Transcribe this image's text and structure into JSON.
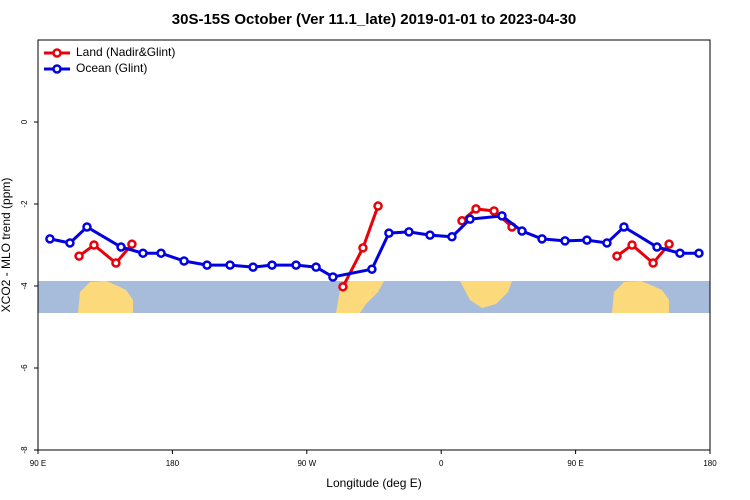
{
  "chart_data": {
    "type": "line",
    "title": "30S-15S October (Ver 11.1_late)   2019-01-01 to 2023-04-30",
    "xlabel": "Longitude (deg E)",
    "ylabel": "XCO2 - MLO trend (ppm)",
    "xlim": [
      90,
      540
    ],
    "xticks": [
      {
        "value": 90,
        "label": "90 E"
      },
      180,
      {
        "value": 270,
        "label": "90 W"
      },
      {
        "value": 360,
        "label": "0"
      },
      {
        "value": 450,
        "label": "90 E"
      },
      {
        "value": 540,
        "label": "180"
      }
    ],
    "ylim": [
      -8,
      2
    ],
    "yticks": [
      0,
      -2,
      -4,
      -6,
      -8
    ],
    "legend": "top-left",
    "series": [
      {
        "name": "Land (Nadir&Glint)",
        "color": "#e8000b",
        "x": [
          117.5,
          127.5,
          142.2,
          152.9,
          null,
          294.2,
          307.6,
          317.7,
          null,
          373.9,
          383.3,
          395.4,
          407.4,
          null,
          477.7,
          487.8,
          501.9,
          512.6
        ],
        "values": [
          -3.27,
          -3.0,
          -3.44,
          -2.98,
          null,
          -4.02,
          -3.07,
          -2.05,
          null,
          -2.41,
          -2.12,
          -2.17,
          -2.56,
          null,
          -3.27,
          -3.0,
          -3.44,
          -2.98
        ]
      },
      {
        "name": "Ocean (Glint)",
        "color": "#0000e0",
        "x": [
          98,
          111.4,
          122.8,
          145.6,
          160.3,
          172.4,
          187.8,
          203.2,
          218.6,
          234,
          246.7,
          262.8,
          276.2,
          287.5,
          313.6,
          325,
          338.4,
          352.5,
          367.2,
          379.3,
          400.7,
          414.1,
          427.5,
          442.9,
          457.6,
          471,
          482.4,
          504.5,
          519.9,
          532.6
        ],
        "values": [
          -2.85,
          -2.95,
          -2.56,
          -3.05,
          -3.2,
          -3.2,
          -3.39,
          -3.49,
          -3.49,
          -3.54,
          -3.49,
          -3.49,
          -3.54,
          -3.78,
          -3.59,
          -2.71,
          -2.68,
          -2.76,
          -2.8,
          -2.37,
          -2.29,
          -2.66,
          -2.85,
          -2.9,
          -2.88,
          -2.95,
          -2.56,
          -3.05,
          -3.2,
          -3.2
        ]
      }
    ]
  }
}
